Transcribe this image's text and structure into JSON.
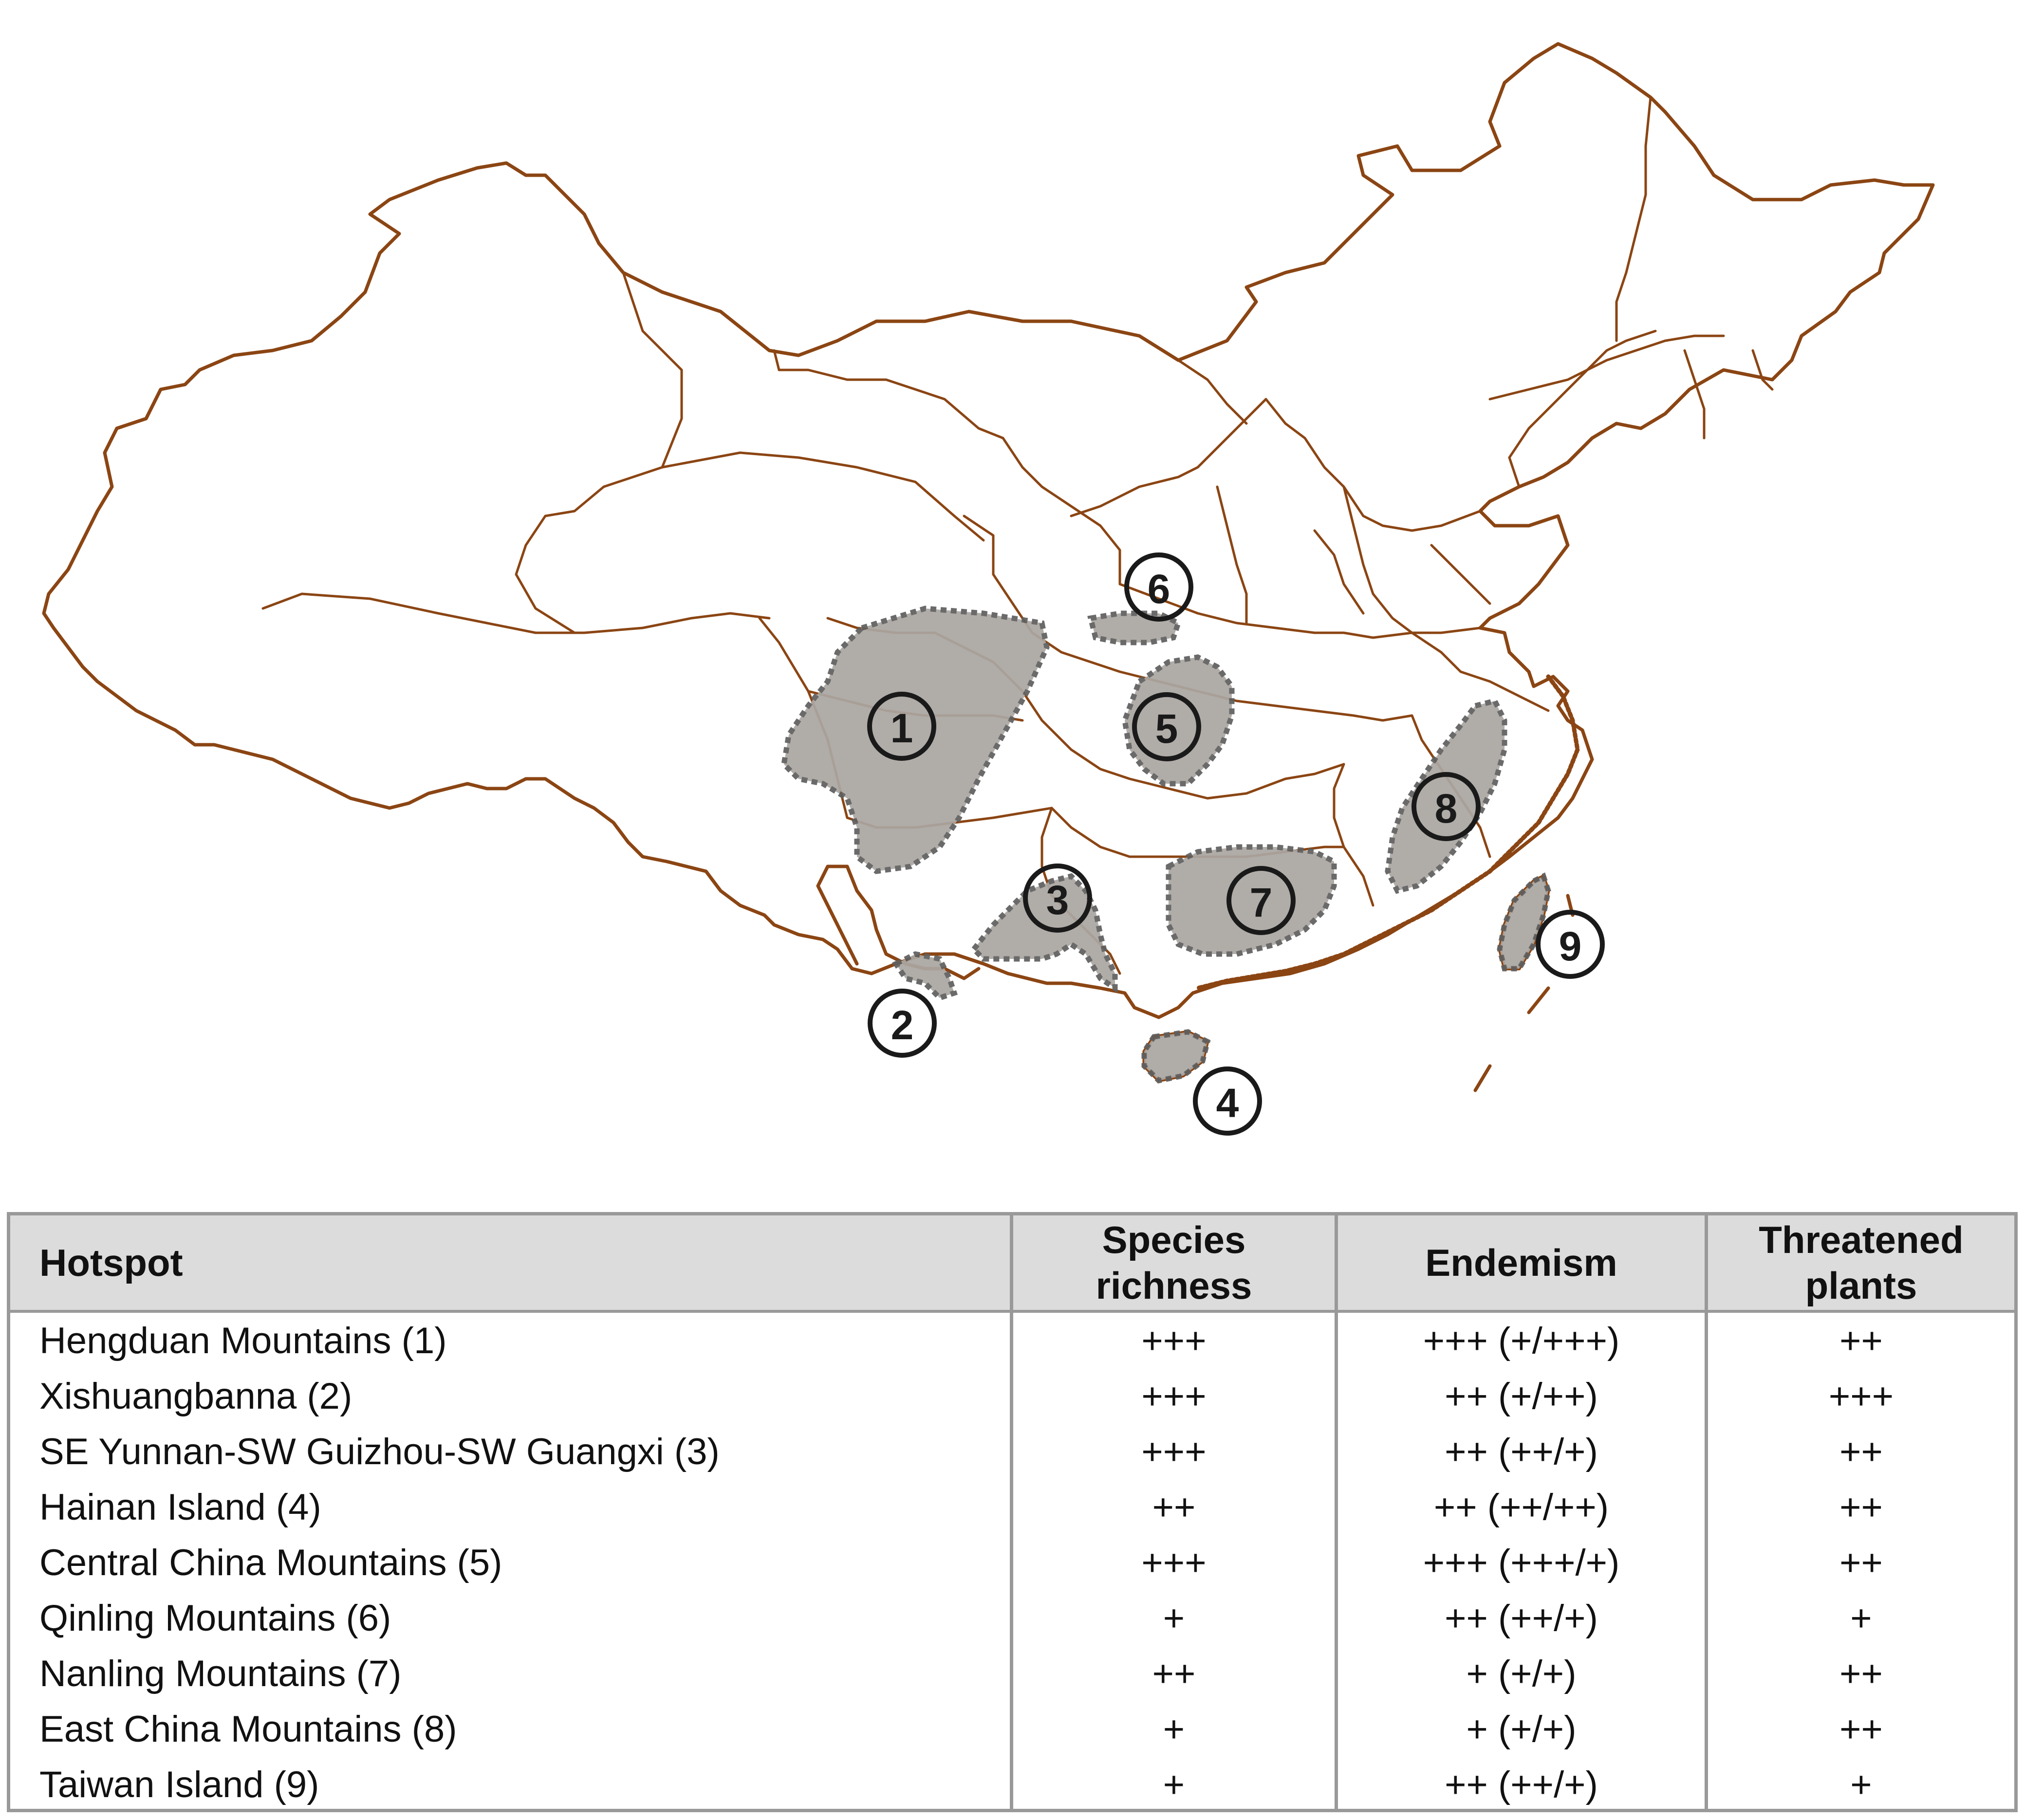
{
  "map": {
    "hotspots": [
      {
        "number": "1"
      },
      {
        "number": "2"
      },
      {
        "number": "3"
      },
      {
        "number": "4"
      },
      {
        "number": "5"
      },
      {
        "number": "6"
      },
      {
        "number": "7"
      },
      {
        "number": "8"
      },
      {
        "number": "9"
      }
    ],
    "colors": {
      "boundary": "#8B4513",
      "hotspot_fill": "#ABA6A2",
      "hotspot_outline": "#5f5f5f"
    }
  },
  "table": {
    "headers": {
      "hotspot": "Hotspot",
      "species_line1": "Species",
      "species_line2": "richness",
      "endemism": "Endemism",
      "threatened_line1": "Threatened",
      "threatened_line2": "plants"
    },
    "rows": [
      {
        "hotspot": "Hengduan Mountains (1)",
        "species": "+++",
        "endemism": "+++ (+/+++)",
        "threatened": "++"
      },
      {
        "hotspot": "Xishuangbanna (2)",
        "species": "+++",
        "endemism": "++ (+/++)",
        "threatened": "+++"
      },
      {
        "hotspot": "SE Yunnan-SW Guizhou-SW Guangxi (3)",
        "species": "+++",
        "endemism": "++ (++/+)",
        "threatened": "++"
      },
      {
        "hotspot": "Hainan Island (4)",
        "species": "++",
        "endemism": "++ (++/++)",
        "threatened": "++"
      },
      {
        "hotspot": "Central China Mountains (5)",
        "species": "+++",
        "endemism": "+++ (+++/+)",
        "threatened": "++"
      },
      {
        "hotspot": "Qinling Mountains (6)",
        "species": "+",
        "endemism": "++ (++/+)",
        "threatened": "+"
      },
      {
        "hotspot": "Nanling Mountains (7)",
        "species": "++",
        "endemism": "+ (+/+)",
        "threatened": "++"
      },
      {
        "hotspot": "East China Mountains (8)",
        "species": "+",
        "endemism": "+ (+/+)",
        "threatened": "++"
      },
      {
        "hotspot": "Taiwan Island (9)",
        "species": "+",
        "endemism": "++ (++/+)",
        "threatened": "+"
      }
    ]
  }
}
